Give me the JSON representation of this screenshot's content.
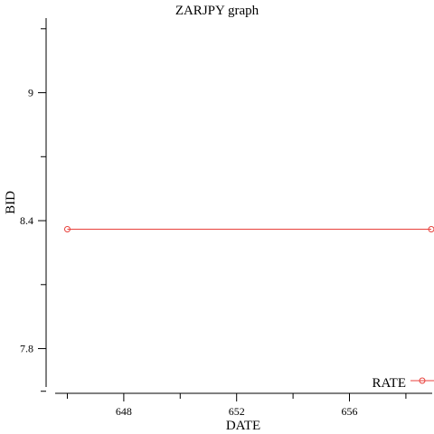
{
  "colors": {
    "series": "#e8413c",
    "axis": "#000000",
    "background": "#ffffff"
  },
  "chart_data": {
    "type": "line",
    "title": "ZARJPY graph",
    "xlabel": "DATE",
    "ylabel": "BID",
    "xlim": [
      645.6,
      658.9
    ],
    "ylim": [
      7.62,
      9.35
    ],
    "x_major_ticks": [
      648,
      652,
      656
    ],
    "x_minor_ticks": [
      646,
      650,
      654,
      658
    ],
    "y_major_ticks": [
      7.8,
      8.4,
      9
    ],
    "y_minor_ticks": [
      7.6,
      8.1,
      8.7,
      9.3
    ],
    "x_tick_labels": [
      "648",
      "652",
      "656"
    ],
    "y_tick_labels": [
      "7.8",
      "8.4",
      "9"
    ],
    "grid": false,
    "legend": {
      "position": "bottom-right",
      "entries": [
        "RATE"
      ]
    },
    "series": [
      {
        "name": "RATE",
        "color": "#e8413c",
        "marker": "circle-open",
        "x": [
          646,
          658.9
        ],
        "y": [
          8.36,
          8.36
        ]
      }
    ]
  }
}
